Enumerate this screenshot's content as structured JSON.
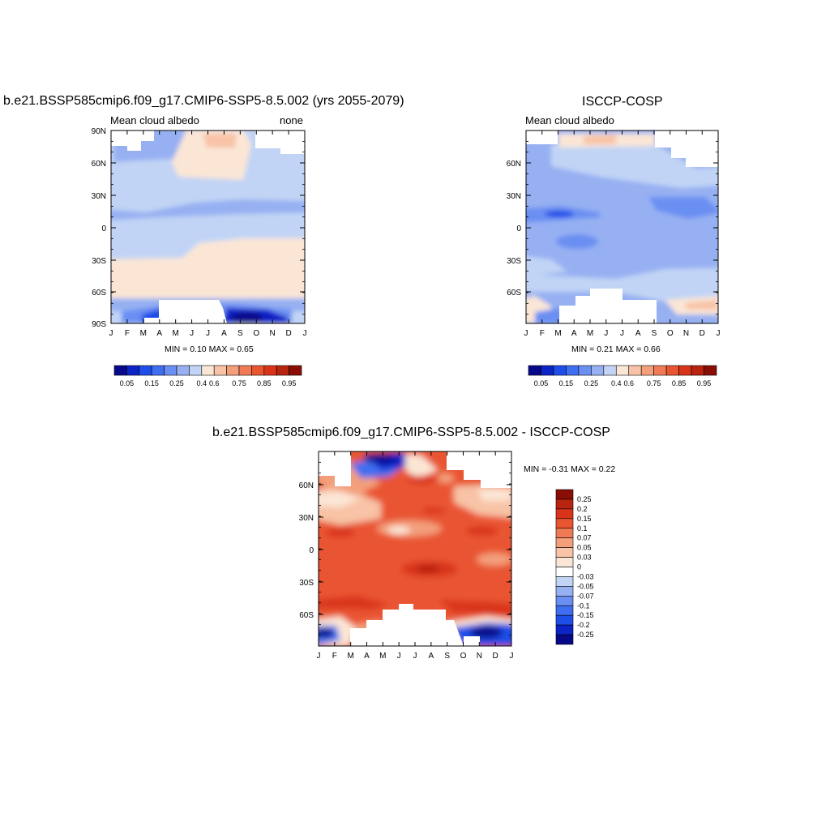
{
  "chart_data": [
    {
      "type": "heatmap",
      "title": "b.e21.BSSP585cmip6.f09_g17.CMIP6-SSP5-8.5.002 (yrs 2055-2079)",
      "left_label": "Mean cloud albedo",
      "right_label": "none",
      "x_ticks": [
        "J",
        "F",
        "M",
        "A",
        "M",
        "J",
        "J",
        "A",
        "S",
        "O",
        "N",
        "D",
        "J"
      ],
      "y_ticks": [
        "90N",
        "60N",
        "30N",
        "0",
        "30S",
        "60S",
        "90S"
      ],
      "stats": "MIN =   0.10 MAX =   0.65",
      "min": 0.1,
      "max": 0.65,
      "colorbar_labels": [
        "0.05",
        "0.15",
        "0.25",
        "0.4",
        "0.6",
        "0.75",
        "0.85",
        "0.95"
      ],
      "colorbar_colors": [
        "#08088b",
        "#0c24c6",
        "#1f4de8",
        "#3f6ef0",
        "#6a8ff2",
        "#96b0f2",
        "#c1d4f5",
        "#fbe6d6",
        "#f8c3a6",
        "#f39f7c",
        "#ef7a55",
        "#e95530",
        "#d9341a",
        "#b82410",
        "#8b0e06"
      ]
    },
    {
      "type": "heatmap",
      "title": "ISCCP-COSP",
      "left_label": "Mean cloud albedo",
      "x_ticks": [
        "J",
        "F",
        "M",
        "A",
        "M",
        "J",
        "J",
        "A",
        "S",
        "O",
        "N",
        "D",
        "J"
      ],
      "y_ticks": [
        "60N",
        "30N",
        "0",
        "30S",
        "60S"
      ],
      "stats": "MIN =   0.21 MAX =   0.66",
      "min": 0.21,
      "max": 0.66,
      "colorbar_labels": [
        "0.05",
        "0.15",
        "0.25",
        "0.4",
        "0.6",
        "0.75",
        "0.85",
        "0.95"
      ],
      "colorbar_colors": [
        "#08088b",
        "#0c24c6",
        "#1f4de8",
        "#3f6ef0",
        "#6a8ff2",
        "#96b0f2",
        "#c1d4f5",
        "#fbe6d6",
        "#f8c3a6",
        "#f39f7c",
        "#ef7a55",
        "#e95530",
        "#d9341a",
        "#b82410",
        "#8b0e06"
      ]
    },
    {
      "type": "heatmap",
      "title": "b.e21.BSSP585cmip6.f09_g17.CMIP6-SSP5-8.5.002 - ISCCP-COSP",
      "x_ticks": [
        "J",
        "F",
        "M",
        "A",
        "M",
        "J",
        "J",
        "A",
        "S",
        "O",
        "N",
        "D",
        "J"
      ],
      "y_ticks": [
        "60N",
        "30N",
        "0",
        "30S",
        "60S"
      ],
      "stats": "MIN =  -0.31 MAX =   0.22",
      "min": -0.31,
      "max": 0.22,
      "colorbar_labels": [
        "0.25",
        "0.2",
        "0.15",
        "0.1",
        "0.07",
        "0.05",
        "0.03",
        "0",
        "-0.03",
        "-0.05",
        "-0.07",
        "-0.1",
        "-0.15",
        "-0.2",
        "-0.25"
      ],
      "colorbar_colors": [
        "#8b0e06",
        "#b82410",
        "#d9341a",
        "#e95530",
        "#ef7a55",
        "#f39f7c",
        "#f8c3a6",
        "#fbe6d6",
        "#ffffff",
        "#c1d4f5",
        "#96b0f2",
        "#6a8ff2",
        "#3f6ef0",
        "#1f4de8",
        "#0c24c6",
        "#08088b"
      ]
    }
  ]
}
